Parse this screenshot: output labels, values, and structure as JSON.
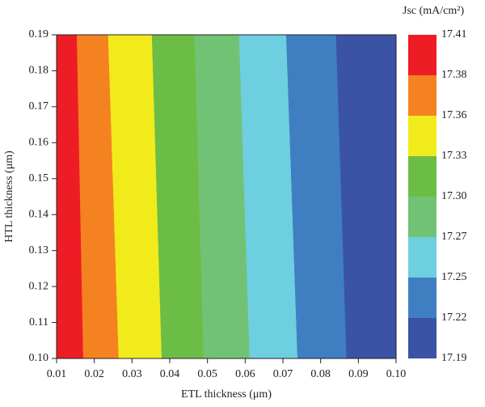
{
  "chart_data": {
    "type": "contour",
    "xlabel": "ETL thickness (μm)",
    "ylabel": "HTL thickness (μm)",
    "colorbar_title": "Jsc (mA/cm²)",
    "xlim": [
      0.01,
      0.1
    ],
    "ylim": [
      0.1,
      0.19
    ],
    "xticks": [
      0.01,
      0.02,
      0.03,
      0.04,
      0.05,
      0.06,
      0.07,
      0.08,
      0.09,
      {
        "value": 0.1,
        "label": "0.10"
      }
    ],
    "yticks": [
      {
        "value": 0.1,
        "label": "0.10"
      },
      0.11,
      0.12,
      0.13,
      0.14,
      0.15,
      0.16,
      0.17,
      0.18,
      0.19
    ],
    "levels": [
      17.41,
      17.38,
      17.36,
      17.33,
      {
        "value": 17.3,
        "label": "17.30"
      },
      17.27,
      17.25,
      17.22,
      17.19
    ],
    "colors": [
      "#ee1c25",
      "#f58220",
      "#f2eb1c",
      "#6cbd45",
      "#72c275",
      "#6dcfdf",
      "#3f7fc1",
      "#3a53a4"
    ],
    "boundaries": [
      {
        "x_bottom": 0.0171,
        "x_top": 0.0154
      },
      {
        "x_bottom": 0.0265,
        "x_top": 0.0237
      },
      {
        "x_bottom": 0.0379,
        "x_top": 0.0353
      },
      {
        "x_bottom": 0.049,
        "x_top": 0.0466
      },
      {
        "x_bottom": 0.0612,
        "x_top": 0.0584
      },
      {
        "x_bottom": 0.0739,
        "x_top": 0.0709
      },
      {
        "x_bottom": 0.0869,
        "x_top": 0.0841
      }
    ]
  }
}
